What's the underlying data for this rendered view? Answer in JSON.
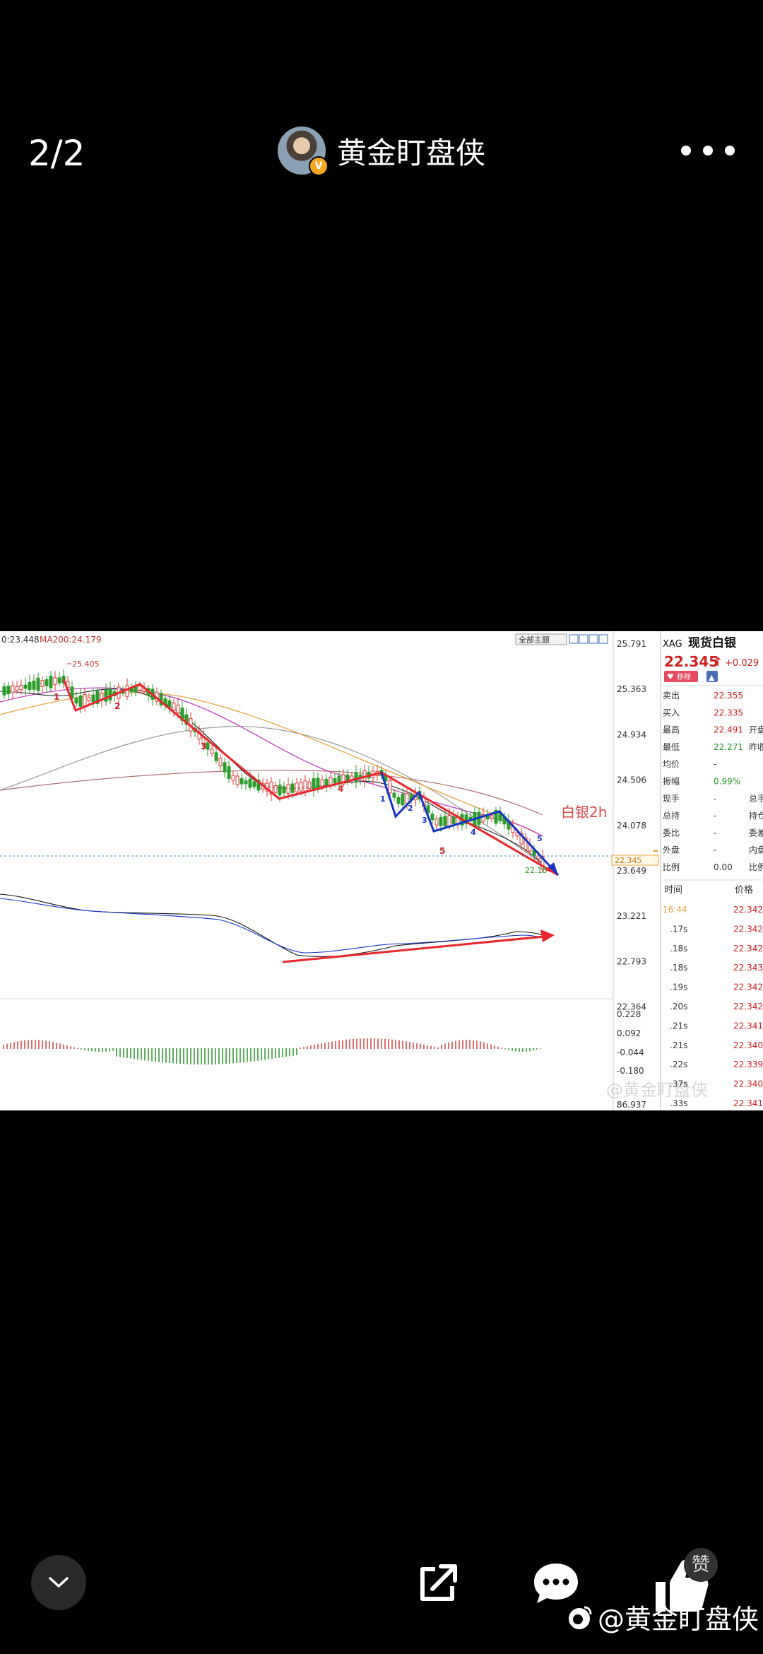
{
  "viewer": {
    "counter": "2/2",
    "author_name": "黄金盯盘侠",
    "verified_badge": "V"
  },
  "chart_data": {
    "type": "line",
    "header_left": "0:23.448",
    "ma_label": "MA200:24.179",
    "toolbar_label": "全部主题",
    "y_ticks": [
      "25.791",
      "25.363",
      "24.934",
      "24.506",
      "24.078",
      "23.649",
      "23.221",
      "22.793",
      "22.364"
    ],
    "current_price_box": "22.345",
    "low_label": "22.18",
    "high_label": "25.405",
    "annotation_title": "白银2h",
    "wave_labels_red": [
      "1",
      "2",
      "3",
      "4",
      "5"
    ],
    "wave_labels_blue": [
      "1",
      "2",
      "3",
      "4",
      "5"
    ],
    "macd_ticks": [
      "0.228",
      "0.092",
      "-0.044",
      "-0.180",
      "86.937"
    ],
    "watermark": "@黄金盯盘侠",
    "colors": {
      "bear_wave": "#e8262d",
      "sub_wave": "#1535c9",
      "ma_orange": "#e6a23c",
      "ma_purple": "#c040c0",
      "up": "#e03b3b",
      "down": "#2a9d2a"
    }
  },
  "quote_panel": {
    "symbol": "XAG",
    "name": "现货白银",
    "price": "22.345",
    "arrow": "↑",
    "change": "+0.029",
    "remove_label": "移除",
    "rows": [
      {
        "label": "卖出",
        "value": "22.355",
        "extra": ""
      },
      {
        "label": "买入",
        "value": "22.335",
        "extra": ""
      },
      {
        "label": "最高",
        "value": "22.491",
        "extra": "开盘"
      },
      {
        "label": "最低",
        "value": "22.271",
        "extra": "昨收"
      },
      {
        "label": "均价",
        "value": "-",
        "extra": ""
      },
      {
        "label": "振幅",
        "value": "0.99%",
        "extra": ""
      },
      {
        "label": "现手",
        "value": "-",
        "extra": "总手"
      },
      {
        "label": "总持",
        "value": "-",
        "extra": "持仓"
      },
      {
        "label": "委比",
        "value": "-",
        "extra": "委差"
      },
      {
        "label": "外盘",
        "value": "-",
        "extra": "内盘"
      },
      {
        "label": "比例",
        "value": "0.00",
        "extra": "比例"
      }
    ],
    "ticks_header": {
      "time": "时间",
      "price": "价格"
    },
    "ticks": [
      {
        "time": "16:44",
        "price": "22.342"
      },
      {
        "time": ".17s",
        "price": "22.342"
      },
      {
        "time": ".18s",
        "price": "22.342"
      },
      {
        "time": ".18s",
        "price": "22.343"
      },
      {
        "time": ".19s",
        "price": "22.342"
      },
      {
        "time": ".20s",
        "price": "22.342"
      },
      {
        "time": ".21s",
        "price": "22.341"
      },
      {
        "time": ".21s",
        "price": "22.340"
      },
      {
        "time": ".22s",
        "price": "22.339"
      },
      {
        "time": ".37s",
        "price": "22.340"
      },
      {
        "time": ".33s",
        "price": "22.341"
      }
    ]
  },
  "bottom": {
    "like_count": "赞",
    "watermark": "@黄金盯盘侠"
  }
}
